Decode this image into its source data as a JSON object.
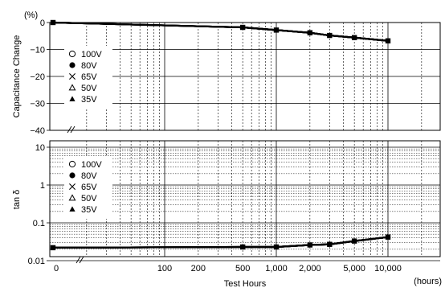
{
  "chart_data": [
    {
      "type": "line",
      "ylabel": "Capacitance Change",
      "yunit": "(%)",
      "ylim": [
        -40,
        0
      ],
      "yticks": [
        0,
        -10,
        -20,
        -30,
        -40
      ],
      "ytick_labels": [
        "0",
        "−10",
        "−20",
        "−30",
        "−40"
      ],
      "grid": true,
      "x": [
        0,
        500,
        1000,
        2000,
        3000,
        5000,
        10000
      ],
      "series": [
        {
          "name": "100V",
          "marker": "open-circle",
          "values": [
            0,
            -1.8,
            -2.8,
            -3.8,
            -4.8,
            -5.6,
            -6.8
          ]
        },
        {
          "name": "80V",
          "marker": "filled-circle",
          "values": [
            0,
            -1.8,
            -2.8,
            -3.8,
            -4.8,
            -5.6,
            -6.8
          ]
        },
        {
          "name": "65V",
          "marker": "cross",
          "values": [
            0,
            -1.8,
            -2.8,
            -3.8,
            -4.8,
            -5.6,
            -6.8
          ]
        },
        {
          "name": "50V",
          "marker": "open-triangle",
          "values": [
            0,
            -1.8,
            -2.8,
            -3.8,
            -4.8,
            -5.6,
            -6.8
          ]
        },
        {
          "name": "35V",
          "marker": "filled-triangle",
          "values": [
            0,
            -1.8,
            -2.8,
            -3.8,
            -4.8,
            -5.6,
            -6.8
          ]
        }
      ],
      "legend_position": "upper-left"
    },
    {
      "type": "line",
      "ylabel": "tan δ",
      "yscale": "log",
      "ylim": [
        0.01,
        10
      ],
      "yticks": [
        10,
        1,
        0.1,
        0.01
      ],
      "ytick_labels": [
        "10",
        "1",
        "0.1",
        "0.01"
      ],
      "grid": true,
      "xlabel": "Test Hours",
      "xunit": "(hours)",
      "xscale": "log",
      "xticks": [
        0,
        100,
        200,
        500,
        1000,
        2000,
        5000,
        10000
      ],
      "xtick_labels": [
        "0",
        "100",
        "200",
        "500",
        "1,000",
        "2,000",
        "5,000",
        "10,000"
      ],
      "x": [
        0,
        500,
        1000,
        2000,
        3000,
        5000,
        10000
      ],
      "series": [
        {
          "name": "100V",
          "marker": "open-circle",
          "values": [
            0.022,
            0.023,
            0.023,
            0.026,
            0.027,
            0.033,
            0.042
          ]
        },
        {
          "name": "80V",
          "marker": "filled-circle",
          "values": [
            0.022,
            0.023,
            0.023,
            0.026,
            0.027,
            0.033,
            0.042
          ]
        },
        {
          "name": "65V",
          "marker": "cross",
          "values": [
            0.022,
            0.023,
            0.023,
            0.026,
            0.027,
            0.033,
            0.042
          ]
        },
        {
          "name": "50V",
          "marker": "open-triangle",
          "values": [
            0.022,
            0.023,
            0.023,
            0.026,
            0.027,
            0.033,
            0.042
          ]
        },
        {
          "name": "35V",
          "marker": "filled-triangle",
          "values": [
            0.022,
            0.023,
            0.023,
            0.026,
            0.027,
            0.033,
            0.042
          ]
        }
      ],
      "legend_position": "upper-left"
    }
  ]
}
